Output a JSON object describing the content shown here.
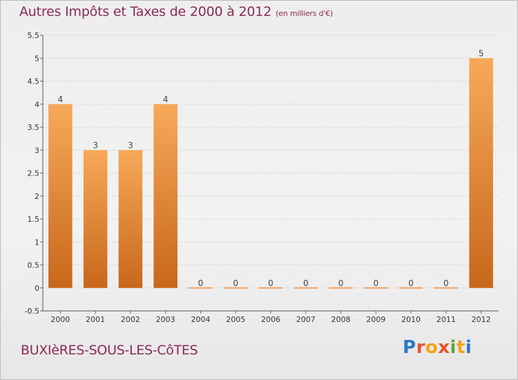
{
  "header": {
    "title": "Autres Impôts et Taxes de 2000 à 2012",
    "unit": "(en milliers d'€)"
  },
  "footer": {
    "commune": "BUXIèRES-SOUS-LES-CôTES",
    "logo": "Proxiti"
  },
  "colors": {
    "bar_light": "#f7a95a",
    "bar_dark": "#c8671a",
    "title": "#8a2a55"
  },
  "chart_data": {
    "type": "bar",
    "title": "Autres Impôts et Taxes de 2000 à 2012",
    "subtitle": "(en milliers d'€)",
    "categories": [
      "2000",
      "2001",
      "2002",
      "2003",
      "2004",
      "2005",
      "2006",
      "2007",
      "2008",
      "2009",
      "2010",
      "2011",
      "2012"
    ],
    "values": [
      4,
      3,
      3,
      4,
      0,
      0,
      0,
      0,
      0,
      0,
      0,
      0,
      5
    ],
    "data_labels": [
      "4",
      "3",
      "3",
      "4",
      "0",
      "0",
      "0",
      "0",
      "0",
      "0",
      "0",
      "0",
      "5"
    ],
    "ylim": [
      -0.5,
      5.5
    ],
    "yticks": [
      "-0.5",
      "0",
      "0.5",
      "1",
      "1.5",
      "2",
      "2.5",
      "3",
      "3.5",
      "4",
      "4.5",
      "5",
      "5.5"
    ],
    "ytick_values": [
      -0.5,
      0,
      0.5,
      1,
      1.5,
      2,
      2.5,
      3,
      3.5,
      4,
      4.5,
      5,
      5.5
    ],
    "xlabel": "",
    "ylabel": "",
    "grid": true
  }
}
